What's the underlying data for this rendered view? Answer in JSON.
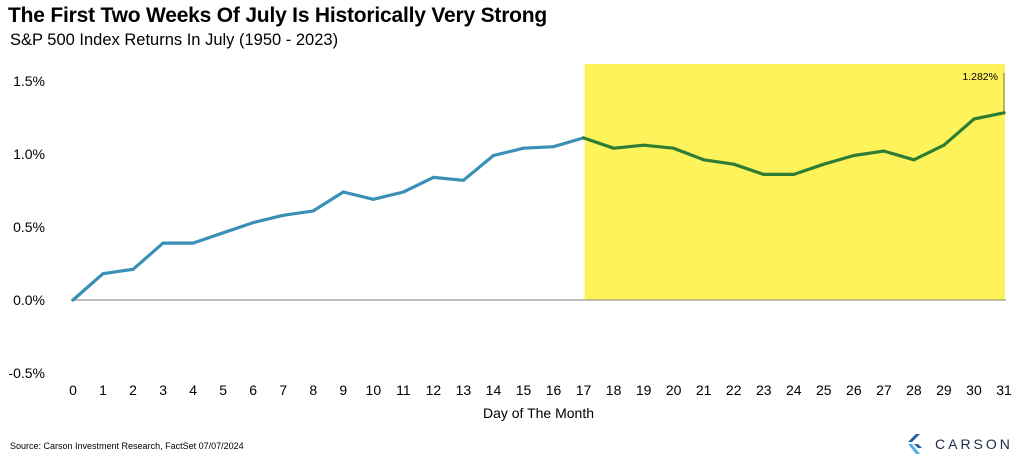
{
  "header": {
    "title": "The First Two Weeks Of July Is Historically Very Strong",
    "subtitle": "S&P 500 Index Returns In July (1950 - 2023)"
  },
  "footer": {
    "source": "Source: Carson Investment Research, FactSet 07/07/2024",
    "logo_text": "CARSON"
  },
  "colors": {
    "line_primary": "#3a8fb7",
    "line_highlight": "#2e7d32",
    "highlight_fill": "#fff35c",
    "logo": "#1f5fa8"
  },
  "chart_data": {
    "type": "line",
    "x": [
      0,
      1,
      2,
      3,
      4,
      5,
      6,
      7,
      8,
      9,
      10,
      11,
      12,
      13,
      14,
      15,
      16,
      17,
      18,
      19,
      20,
      21,
      22,
      23,
      24,
      25,
      26,
      27,
      28,
      29,
      30,
      31
    ],
    "series": [
      {
        "values": [
          0.0,
          0.18,
          0.21,
          0.39,
          0.39,
          0.46,
          0.53,
          0.58,
          0.61,
          0.74,
          0.69,
          0.74,
          0.84,
          0.82,
          0.99,
          1.04,
          1.05,
          1.11,
          1.04,
          1.06,
          1.04,
          0.96,
          0.93,
          0.86,
          0.86,
          0.93,
          0.99,
          1.02,
          0.96,
          1.06,
          1.24,
          1.282
        ]
      }
    ],
    "highlight_range": [
      17,
      31
    ],
    "annotation": {
      "text": "1.282%",
      "x": 31,
      "y": 1.282
    },
    "xlabel": "Day of The Month",
    "ylabel": "",
    "ylim": [
      -0.5,
      1.5
    ],
    "yticks": [
      1.5,
      1.0,
      0.5,
      0.0,
      -0.5
    ],
    "ytick_labels": [
      "1.5%",
      "1.0%",
      "0.5%",
      "0.0%",
      "-0.5%"
    ],
    "xtick_labels": [
      "0",
      "1",
      "2",
      "3",
      "4",
      "5",
      "6",
      "7",
      "8",
      "9",
      "10",
      "11",
      "12",
      "13",
      "14",
      "15",
      "16",
      "17",
      "18",
      "19",
      "20",
      "21",
      "22",
      "23",
      "24",
      "25",
      "26",
      "27",
      "28",
      "29",
      "30",
      "31"
    ],
    "grid": false
  }
}
